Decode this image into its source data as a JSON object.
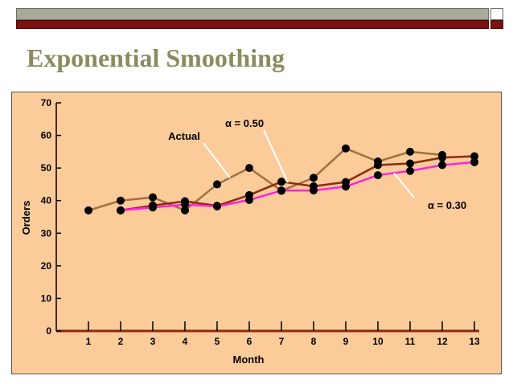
{
  "slide": {
    "title": "Exponential Smoothing"
  },
  "chart_data": {
    "type": "line",
    "title": "",
    "xlabel": "Month",
    "ylabel": "Orders",
    "x": [
      1,
      2,
      3,
      4,
      5,
      6,
      7,
      8,
      9,
      10,
      11,
      12,
      13
    ],
    "xlim": [
      0,
      13
    ],
    "ylim": [
      0,
      70
    ],
    "yticks": [
      0,
      10,
      20,
      30,
      40,
      50,
      60,
      70
    ],
    "grid": false,
    "legend": "none",
    "series": [
      {
        "name": "Actual",
        "color": "#a07040",
        "x": [
          1,
          2,
          3,
          4,
          5,
          6,
          7,
          8,
          9,
          10,
          11,
          12
        ],
        "values": [
          37,
          40,
          41,
          37,
          45,
          50,
          43,
          47,
          56,
          52,
          55,
          54
        ]
      },
      {
        "name": "α = 0.50",
        "color": "#8b2a0e",
        "x": [
          2,
          3,
          4,
          5,
          6,
          7,
          8,
          9,
          10,
          11,
          12,
          13
        ],
        "values": [
          37.0,
          38.5,
          39.8,
          38.4,
          41.7,
          45.8,
          44.4,
          45.7,
          50.9,
          51.4,
          53.2,
          53.6
        ]
      },
      {
        "name": "α = 0.30",
        "color": "#ff22dd",
        "x": [
          2,
          3,
          4,
          5,
          6,
          7,
          8,
          9,
          10,
          11,
          12,
          13
        ],
        "values": [
          37.0,
          37.9,
          38.8,
          38.2,
          40.2,
          43.1,
          43.1,
          44.3,
          47.8,
          49.1,
          50.9,
          51.8
        ]
      }
    ],
    "annotations": [
      {
        "text": "Actual",
        "series": "Actual"
      },
      {
        "text": "α = 0.50",
        "series": "α = 0.50"
      },
      {
        "text": "α = 0.30",
        "series": "α = 0.30"
      }
    ]
  }
}
